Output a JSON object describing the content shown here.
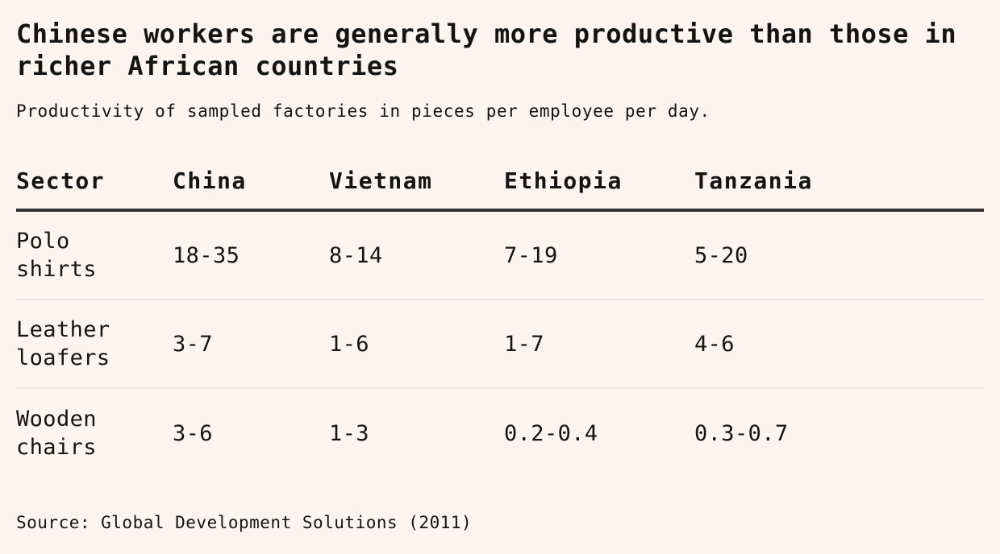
{
  "colors": {
    "background": "#fdf3ef",
    "text": "#141414",
    "header_rule": "#343434",
    "row_divider": "#f0e7e4"
  },
  "chart_data": {
    "type": "table",
    "title": "Chinese workers are generally more productive than those in richer African countries",
    "subtitle": "Productivity of sampled factories in pieces per employee per day.",
    "source": "Source: Global Development Solutions (2011)",
    "columns": [
      "Sector",
      "China",
      "Vietnam",
      "Ethiopia",
      "Tanzania"
    ],
    "rows": [
      {
        "sector": "Polo shirts",
        "values": [
          "18-35",
          "8-14",
          "7-19",
          "5-20"
        ]
      },
      {
        "sector": "Leather loafers",
        "values": [
          "3-7",
          "1-6",
          "1-7",
          "4-6"
        ]
      },
      {
        "sector": "Wooden chairs",
        "values": [
          "3-6",
          "1-3",
          "0.2-0.4",
          "0.3-0.7"
        ]
      }
    ]
  }
}
